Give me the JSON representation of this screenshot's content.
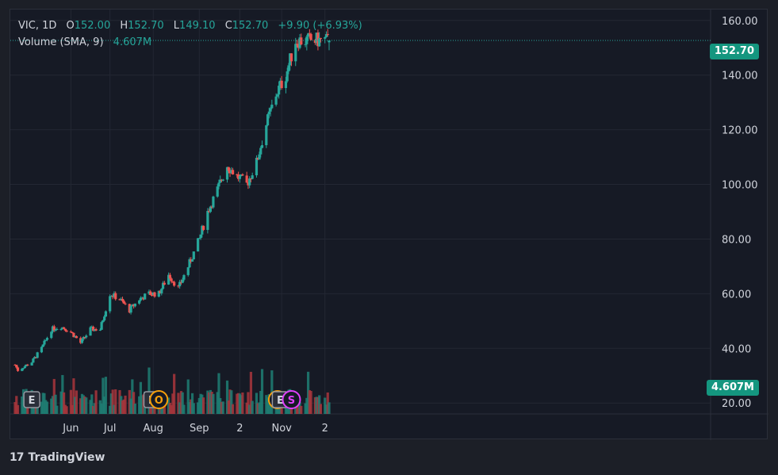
{
  "legend": {
    "symbol": "VIC",
    "interval": "1D",
    "open_label": "O",
    "open": "152.00",
    "high_label": "H",
    "high": "152.70",
    "low_label": "L",
    "low": "149.10",
    "close_label": "C",
    "close": "152.70",
    "change": "+9.90 (+6.93%)",
    "volume_label": "Volume (SMA, 9)",
    "volume_value": "4.607M"
  },
  "price_tags": {
    "last_price": "152.70",
    "volume": "4.607M"
  },
  "brand": {
    "logo": "17",
    "name": "TradingView"
  },
  "colors": {
    "up": "#26a69a",
    "down": "#ef5350",
    "up_volume": "#1f7f74",
    "down_volume": "#a9363c",
    "background": "#161a25",
    "grid": "#232733",
    "axis_text": "#d1d4dc",
    "earnings_marker": "#9598a1",
    "dividend_marker": "#f59e0b",
    "split_marker": "#e040fb"
  },
  "event_markers": [
    {
      "type": "E",
      "icon": "earnings-icon",
      "date": "2024-05-06"
    },
    {
      "type": "E",
      "icon": "earnings-icon",
      "date": "2024-07-31"
    },
    {
      "type": "O",
      "icon": "dividend-icon",
      "date": "2024-08-05"
    },
    {
      "type": "O",
      "icon": "dividend-icon",
      "date": "2024-10-29"
    },
    {
      "type": "E",
      "icon": "earnings-icon",
      "date": "2024-10-31"
    },
    {
      "type": "S",
      "icon": "split-icon",
      "date": "2024-11-08"
    }
  ],
  "chart_data": {
    "type": "candlestick",
    "y_axis": {
      "min": 16,
      "max": 164,
      "ticks": [
        20,
        40,
        60,
        80,
        100,
        120,
        140,
        160
      ],
      "tick_labels": [
        "20.00",
        "40.00",
        "60.00",
        "80.00",
        "100.00",
        "120.00",
        "140.00",
        "160.00"
      ]
    },
    "x_axis": {
      "labels": [
        "Jun",
        "Jul",
        "Aug",
        "Sep",
        "2",
        "Nov",
        "2"
      ]
    },
    "x_label_dates": [
      "2024-06-03",
      "2024-07-01",
      "2024-08-01",
      "2024-09-03",
      "2024-10-02",
      "2024-11-01",
      "2024-12-02"
    ],
    "start_date": "2024-04-24",
    "x": [
      "2024-04-24",
      "2024-04-26",
      "2024-05-06",
      "2024-05-13",
      "2024-05-20",
      "2024-05-27",
      "2024-06-03",
      "2024-06-10",
      "2024-06-17",
      "2024-06-24",
      "2024-07-01",
      "2024-07-08",
      "2024-07-15",
      "2024-07-22",
      "2024-07-29",
      "2024-08-05",
      "2024-08-12",
      "2024-08-19",
      "2024-08-26",
      "2024-09-03",
      "2024-09-09",
      "2024-09-16",
      "2024-09-23",
      "2024-09-30",
      "2024-10-07",
      "2024-10-14",
      "2024-10-21",
      "2024-10-28",
      "2024-11-04",
      "2024-11-11",
      "2024-11-18",
      "2024-11-25",
      "2024-12-02",
      "2024-12-05"
    ],
    "close_anchors": [
      34,
      32,
      35,
      40,
      47,
      48,
      46,
      42,
      47,
      47,
      60,
      58,
      54,
      58,
      60,
      60,
      67,
      62,
      70,
      80,
      90,
      98,
      107,
      103,
      100,
      108,
      122,
      133,
      140,
      152.7
    ],
    "last_bar": {
      "open": 152.0,
      "high": 152.7,
      "low": 149.1,
      "close": 152.7,
      "volume": "4.607M"
    },
    "volume_sma_value": "4.607M",
    "volume_scale_note": "volume bars drawn in lower band of chart"
  }
}
